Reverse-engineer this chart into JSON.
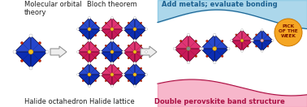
{
  "bg_color": "#ffffff",
  "labels": {
    "mol_orbital": "Molecular orbital\ntheory",
    "bloch": "Bloch theorem",
    "add_metals": "Add metals; evaluate bonding",
    "halide_oct": "Halide octahedron",
    "halide_lattice": "Halide lattice",
    "double_perov": "Double perovskite band structure"
  },
  "badge_text": "PICK\nOF THE\nWEEK",
  "badge_color": "#f5a623",
  "badge_text_color": "#7a1500",
  "blue_wave_color": "#5ab0d8",
  "pink_wave_color": "#f07098",
  "arrow_color": "#888888",
  "arrow_face": "#ffffff",
  "label_fontsize": 6.0,
  "badge_fontsize": 4.2,
  "oct_blue": "#2244cc",
  "oct_pink": "#e03070",
  "oct_edge": "#111133",
  "oct_yellow": "#f0c020",
  "oct_red": "#cc2200",
  "oct_white": "#ffffff",
  "oct_gray": "#888888",
  "oct_lavender": "#ddaacc"
}
